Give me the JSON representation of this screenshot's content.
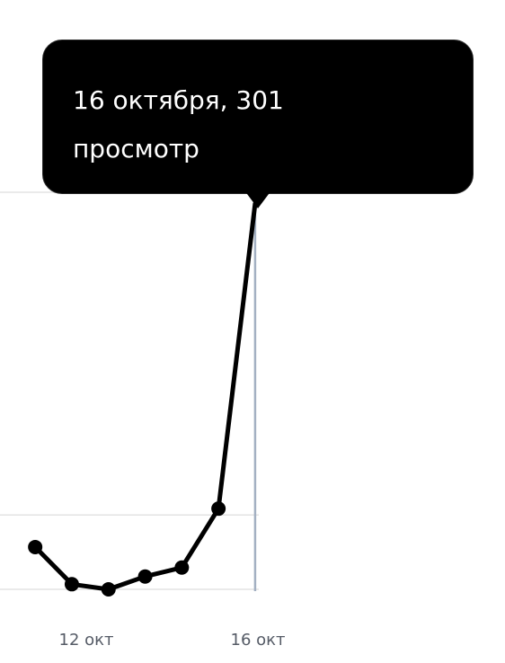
{
  "chart_data": {
    "type": "line",
    "x_labels": [
      "12 окт",
      "16 окт"
    ],
    "points": [
      {
        "day": 10,
        "views": 33
      },
      {
        "day": 11,
        "views": 4
      },
      {
        "day": 12,
        "views": 0
      },
      {
        "day": 13,
        "views": 10
      },
      {
        "day": 14,
        "views": 17
      },
      {
        "day": 15,
        "views": 63
      },
      {
        "day": 16,
        "views": 301
      }
    ],
    "x_range": [
      9.04,
      16.1
    ],
    "y_range": [
      0,
      310
    ],
    "gridline_values": [
      0,
      58,
      310
    ],
    "highlight_day": 16,
    "grid": true,
    "colors": {
      "line": "#000000",
      "gridline": "#e3e3e3",
      "crosshair": "#a3b0c2",
      "tooltip_bg": "#000000",
      "tooltip_text": "#ffffff",
      "tick_text": "#555b66"
    }
  },
  "tooltip": {
    "line1": "16 октября, 301",
    "line2": "просмотр"
  }
}
